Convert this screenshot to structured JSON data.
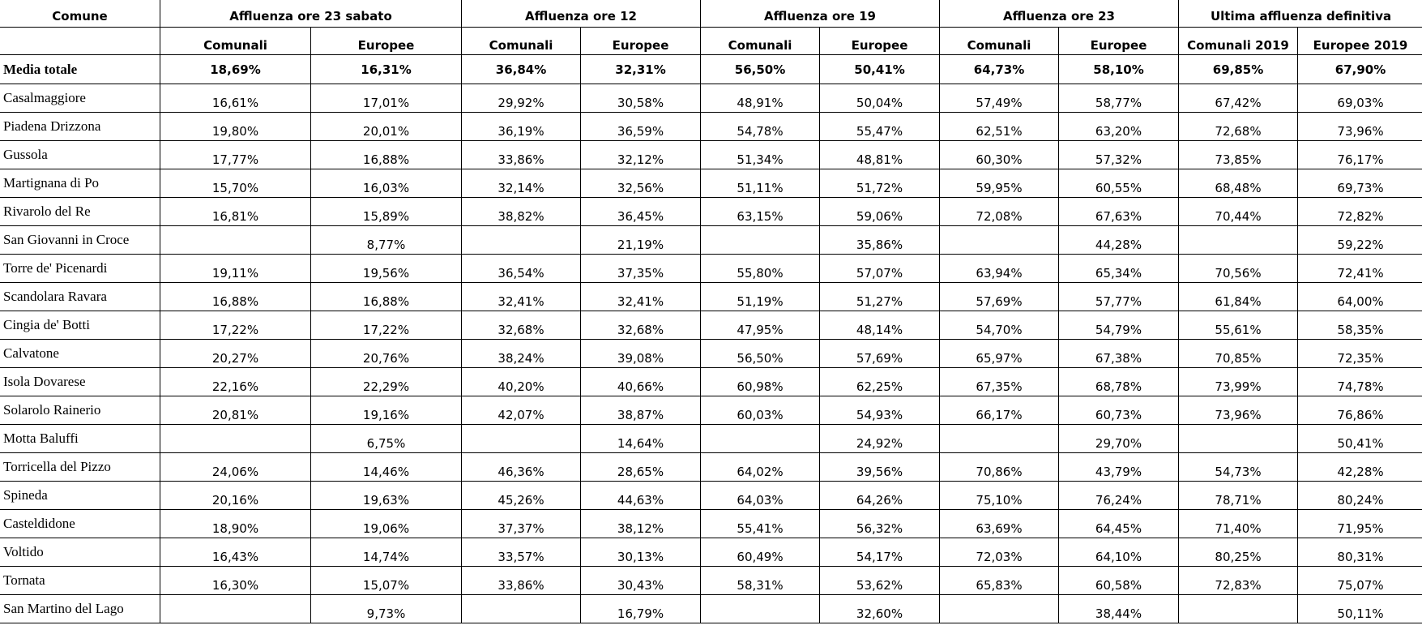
{
  "header": {
    "comune": "Comune",
    "groups": [
      "Affluenza ore 23 sabato",
      "Affluenza ore 12",
      "Affluenza ore 19",
      "Affluenza ore 23",
      "Ultima affluenza definitiva"
    ],
    "subheaders": [
      "Comunali",
      "Europee",
      "Comunali",
      "Europee",
      "Comunali",
      "Europee",
      "Comunali",
      "Europee",
      "Comunali 2019",
      "Europee 2019"
    ]
  },
  "average": {
    "label": "Media totale",
    "values": [
      "18,69%",
      "16,31%",
      "36,84%",
      "32,31%",
      "56,50%",
      "50,41%",
      "64,73%",
      "58,10%",
      "69,85%",
      "67,90%"
    ]
  },
  "rows": [
    {
      "name": "Casalmaggiore",
      "values": [
        "16,61%",
        "17,01%",
        "29,92%",
        "30,58%",
        "48,91%",
        "50,04%",
        "57,49%",
        "58,77%",
        "67,42%",
        "69,03%"
      ]
    },
    {
      "name": "Piadena Drizzona",
      "values": [
        "19,80%",
        "20,01%",
        "36,19%",
        "36,59%",
        "54,78%",
        "55,47%",
        "62,51%",
        "63,20%",
        "72,68%",
        "73,96%"
      ]
    },
    {
      "name": "Gussola",
      "values": [
        "17,77%",
        "16,88%",
        "33,86%",
        "32,12%",
        "51,34%",
        "48,81%",
        "60,30%",
        "57,32%",
        "73,85%",
        "76,17%"
      ]
    },
    {
      "name": "Martignana di Po",
      "values": [
        "15,70%",
        "16,03%",
        "32,14%",
        "32,56%",
        "51,11%",
        "51,72%",
        "59,95%",
        "60,55%",
        "68,48%",
        "69,73%"
      ]
    },
    {
      "name": "Rivarolo del Re",
      "values": [
        "16,81%",
        "15,89%",
        "38,82%",
        "36,45%",
        "63,15%",
        "59,06%",
        "72,08%",
        "67,63%",
        "70,44%",
        "72,82%"
      ]
    },
    {
      "name": "San Giovanni in Croce",
      "values": [
        "",
        "8,77%",
        "",
        "21,19%",
        "",
        "35,86%",
        "",
        "44,28%",
        "",
        "59,22%"
      ]
    },
    {
      "name": "Torre de' Picenardi",
      "values": [
        "19,11%",
        "19,56%",
        "36,54%",
        "37,35%",
        "55,80%",
        "57,07%",
        "63,94%",
        "65,34%",
        "70,56%",
        "72,41%"
      ]
    },
    {
      "name": "Scandolara Ravara",
      "values": [
        "16,88%",
        "16,88%",
        "32,41%",
        "32,41%",
        "51,19%",
        "51,27%",
        "57,69%",
        "57,77%",
        "61,84%",
        "64,00%"
      ]
    },
    {
      "name": "Cingia de' Botti",
      "values": [
        "17,22%",
        "17,22%",
        "32,68%",
        "32,68%",
        "47,95%",
        "48,14%",
        "54,70%",
        "54,79%",
        "55,61%",
        "58,35%"
      ]
    },
    {
      "name": "Calvatone",
      "values": [
        "20,27%",
        "20,76%",
        "38,24%",
        "39,08%",
        "56,50%",
        "57,69%",
        "65,97%",
        "67,38%",
        "70,85%",
        "72,35%"
      ]
    },
    {
      "name": "Isola Dovarese",
      "values": [
        "22,16%",
        "22,29%",
        "40,20%",
        "40,66%",
        "60,98%",
        "62,25%",
        "67,35%",
        "68,78%",
        "73,99%",
        "74,78%"
      ]
    },
    {
      "name": "Solarolo Rainerio",
      "values": [
        "20,81%",
        "19,16%",
        "42,07%",
        "38,87%",
        "60,03%",
        "54,93%",
        "66,17%",
        "60,73%",
        "73,96%",
        "76,86%"
      ]
    },
    {
      "name": "Motta Baluffi",
      "values": [
        "",
        "6,75%",
        "",
        "14,64%",
        "",
        "24,92%",
        "",
        "29,70%",
        "",
        "50,41%"
      ]
    },
    {
      "name": "Torricella del Pizzo",
      "values": [
        "24,06%",
        "14,46%",
        "46,36%",
        "28,65%",
        "64,02%",
        "39,56%",
        "70,86%",
        "43,79%",
        "54,73%",
        "42,28%"
      ]
    },
    {
      "name": "Spineda",
      "values": [
        "20,16%",
        "19,63%",
        "45,26%",
        "44,63%",
        "64,03%",
        "64,26%",
        "75,10%",
        "76,24%",
        "78,71%",
        "80,24%"
      ]
    },
    {
      "name": "Casteldidone",
      "values": [
        "18,90%",
        "19,06%",
        "37,37%",
        "38,12%",
        "55,41%",
        "56,32%",
        "63,69%",
        "64,45%",
        "71,40%",
        "71,95%"
      ]
    },
    {
      "name": "Voltido",
      "values": [
        "16,43%",
        "14,74%",
        "33,57%",
        "30,13%",
        "60,49%",
        "54,17%",
        "72,03%",
        "64,10%",
        "80,25%",
        "80,31%"
      ]
    },
    {
      "name": "Tornata",
      "values": [
        "16,30%",
        "15,07%",
        "33,86%",
        "30,43%",
        "58,31%",
        "53,62%",
        "65,83%",
        "60,58%",
        "72,83%",
        "75,07%"
      ]
    },
    {
      "name": "San Martino del Lago",
      "values": [
        "",
        "9,73%",
        "",
        "16,79%",
        "",
        "32,60%",
        "",
        "38,44%",
        "",
        "50,11%"
      ]
    }
  ]
}
